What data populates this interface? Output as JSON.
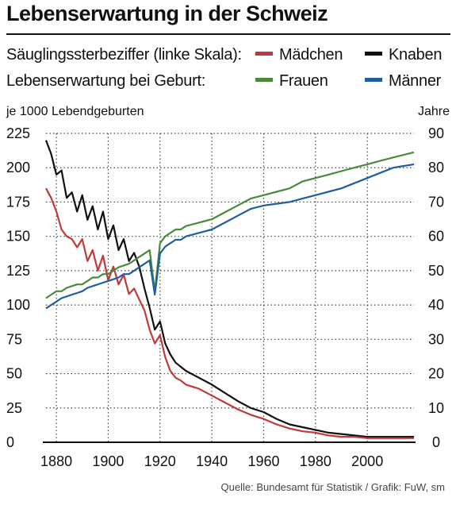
{
  "title": "Lebenserwartung in der Schweiz",
  "legend": {
    "row1_label": "Säuglingssterbeziffer (linke Skala):",
    "row2_label": "Lebenserwartung bei Geburt:",
    "items": [
      {
        "key": "maedchen",
        "label": "Mädchen",
        "color": "#c0393b"
      },
      {
        "key": "knaben",
        "label": "Knaben",
        "color": "#111111"
      },
      {
        "key": "frauen",
        "label": "Frauen",
        "color": "#4a8a3a"
      },
      {
        "key": "maenner",
        "label": "Männer",
        "color": "#1f5fa0"
      }
    ]
  },
  "axis_left_unit": "je 1000 Lebendgeburten",
  "axis_right_unit": "Jahre",
  "source": "Quelle: Bundesamt für Statistik / Grafik: FuW, sm",
  "chart_data": {
    "type": "line",
    "grid": true,
    "xlim": [
      1876,
      2018
    ],
    "x_ticks": [
      1880,
      1900,
      1920,
      1940,
      1960,
      1980,
      2000
    ],
    "left_axis": {
      "label": "je 1000 Lebendgeburten",
      "ylim": [
        0,
        225
      ],
      "ticks": [
        0,
        25,
        50,
        75,
        100,
        125,
        150,
        175,
        200,
        225
      ]
    },
    "right_axis": {
      "label": "Jahre",
      "ylim": [
        0,
        90
      ],
      "ticks": [
        0,
        10,
        20,
        30,
        40,
        50,
        60,
        70,
        80,
        90
      ]
    },
    "series": [
      {
        "name": "Knaben",
        "axis": "left",
        "color": "#111111",
        "x": [
          1876,
          1878,
          1880,
          1882,
          1884,
          1886,
          1888,
          1890,
          1892,
          1894,
          1896,
          1898,
          1900,
          1902,
          1904,
          1906,
          1908,
          1910,
          1912,
          1914,
          1916,
          1918,
          1920,
          1922,
          1924,
          1926,
          1928,
          1930,
          1935,
          1940,
          1945,
          1950,
          1955,
          1960,
          1965,
          1970,
          1975,
          1980,
          1985,
          1990,
          1995,
          2000,
          2005,
          2010,
          2018
        ],
        "y": [
          220,
          210,
          195,
          198,
          178,
          182,
          168,
          180,
          162,
          172,
          155,
          168,
          148,
          158,
          140,
          148,
          132,
          138,
          128,
          112,
          98,
          82,
          88,
          72,
          64,
          58,
          55,
          52,
          47,
          42,
          36,
          30,
          25,
          22,
          17,
          13,
          11,
          9,
          7,
          6,
          5,
          4,
          4,
          4,
          4
        ]
      },
      {
        "name": "Mädchen",
        "axis": "left",
        "color": "#c0393b",
        "x": [
          1876,
          1878,
          1880,
          1882,
          1884,
          1886,
          1888,
          1890,
          1892,
          1894,
          1896,
          1898,
          1900,
          1902,
          1904,
          1906,
          1908,
          1910,
          1912,
          1914,
          1916,
          1918,
          1920,
          1922,
          1924,
          1926,
          1928,
          1930,
          1935,
          1940,
          1945,
          1950,
          1955,
          1960,
          1965,
          1970,
          1975,
          1980,
          1985,
          1990,
          1995,
          2000,
          2005,
          2010,
          2018
        ],
        "y": [
          185,
          178,
          168,
          155,
          150,
          148,
          142,
          148,
          132,
          140,
          125,
          136,
          118,
          128,
          115,
          122,
          108,
          112,
          104,
          96,
          82,
          72,
          78,
          62,
          52,
          47,
          45,
          42,
          39,
          34,
          29,
          24,
          20,
          17,
          13,
          10,
          8,
          7,
          5,
          4,
          4,
          3,
          3,
          3,
          3
        ]
      },
      {
        "name": "Frauen",
        "axis": "right",
        "color": "#4a8a3a",
        "x": [
          1876,
          1878,
          1880,
          1882,
          1884,
          1886,
          1888,
          1890,
          1892,
          1894,
          1896,
          1898,
          1900,
          1902,
          1904,
          1906,
          1908,
          1910,
          1912,
          1914,
          1916,
          1918,
          1920,
          1922,
          1924,
          1926,
          1928,
          1930,
          1935,
          1940,
          1945,
          1950,
          1955,
          1960,
          1965,
          1970,
          1975,
          1980,
          1985,
          1990,
          1995,
          2000,
          2005,
          2010,
          2018
        ],
        "y": [
          42,
          43,
          44,
          44,
          45,
          45.5,
          46,
          46,
          47,
          48,
          48,
          49,
          49,
          50,
          51,
          51.5,
          52,
          53,
          54,
          55,
          56,
          44,
          58,
          60,
          61,
          62,
          62,
          63,
          64,
          65,
          67,
          69,
          71,
          72,
          73,
          74,
          76,
          77,
          78,
          79,
          80,
          81,
          82,
          83,
          84.5
        ]
      },
      {
        "name": "Männer",
        "axis": "right",
        "color": "#1f5fa0",
        "x": [
          1876,
          1878,
          1880,
          1882,
          1884,
          1886,
          1888,
          1890,
          1892,
          1894,
          1896,
          1898,
          1900,
          1902,
          1904,
          1906,
          1908,
          1910,
          1912,
          1914,
          1916,
          1918,
          1920,
          1922,
          1924,
          1926,
          1928,
          1930,
          1935,
          1940,
          1945,
          1950,
          1955,
          1960,
          1965,
          1970,
          1975,
          1980,
          1985,
          1990,
          1995,
          2000,
          2005,
          2010,
          2018
        ],
        "y": [
          39,
          40,
          41,
          42,
          42.5,
          43,
          43.5,
          44,
          45,
          45.5,
          46,
          46.5,
          47,
          47.5,
          48,
          49,
          49,
          50,
          51,
          52,
          53,
          43,
          55,
          57,
          58,
          59,
          59,
          60,
          61,
          62,
          64,
          66,
          68,
          69,
          69.5,
          70,
          71,
          72,
          73,
          74,
          75.5,
          77,
          78.5,
          80,
          81
        ]
      }
    ]
  }
}
